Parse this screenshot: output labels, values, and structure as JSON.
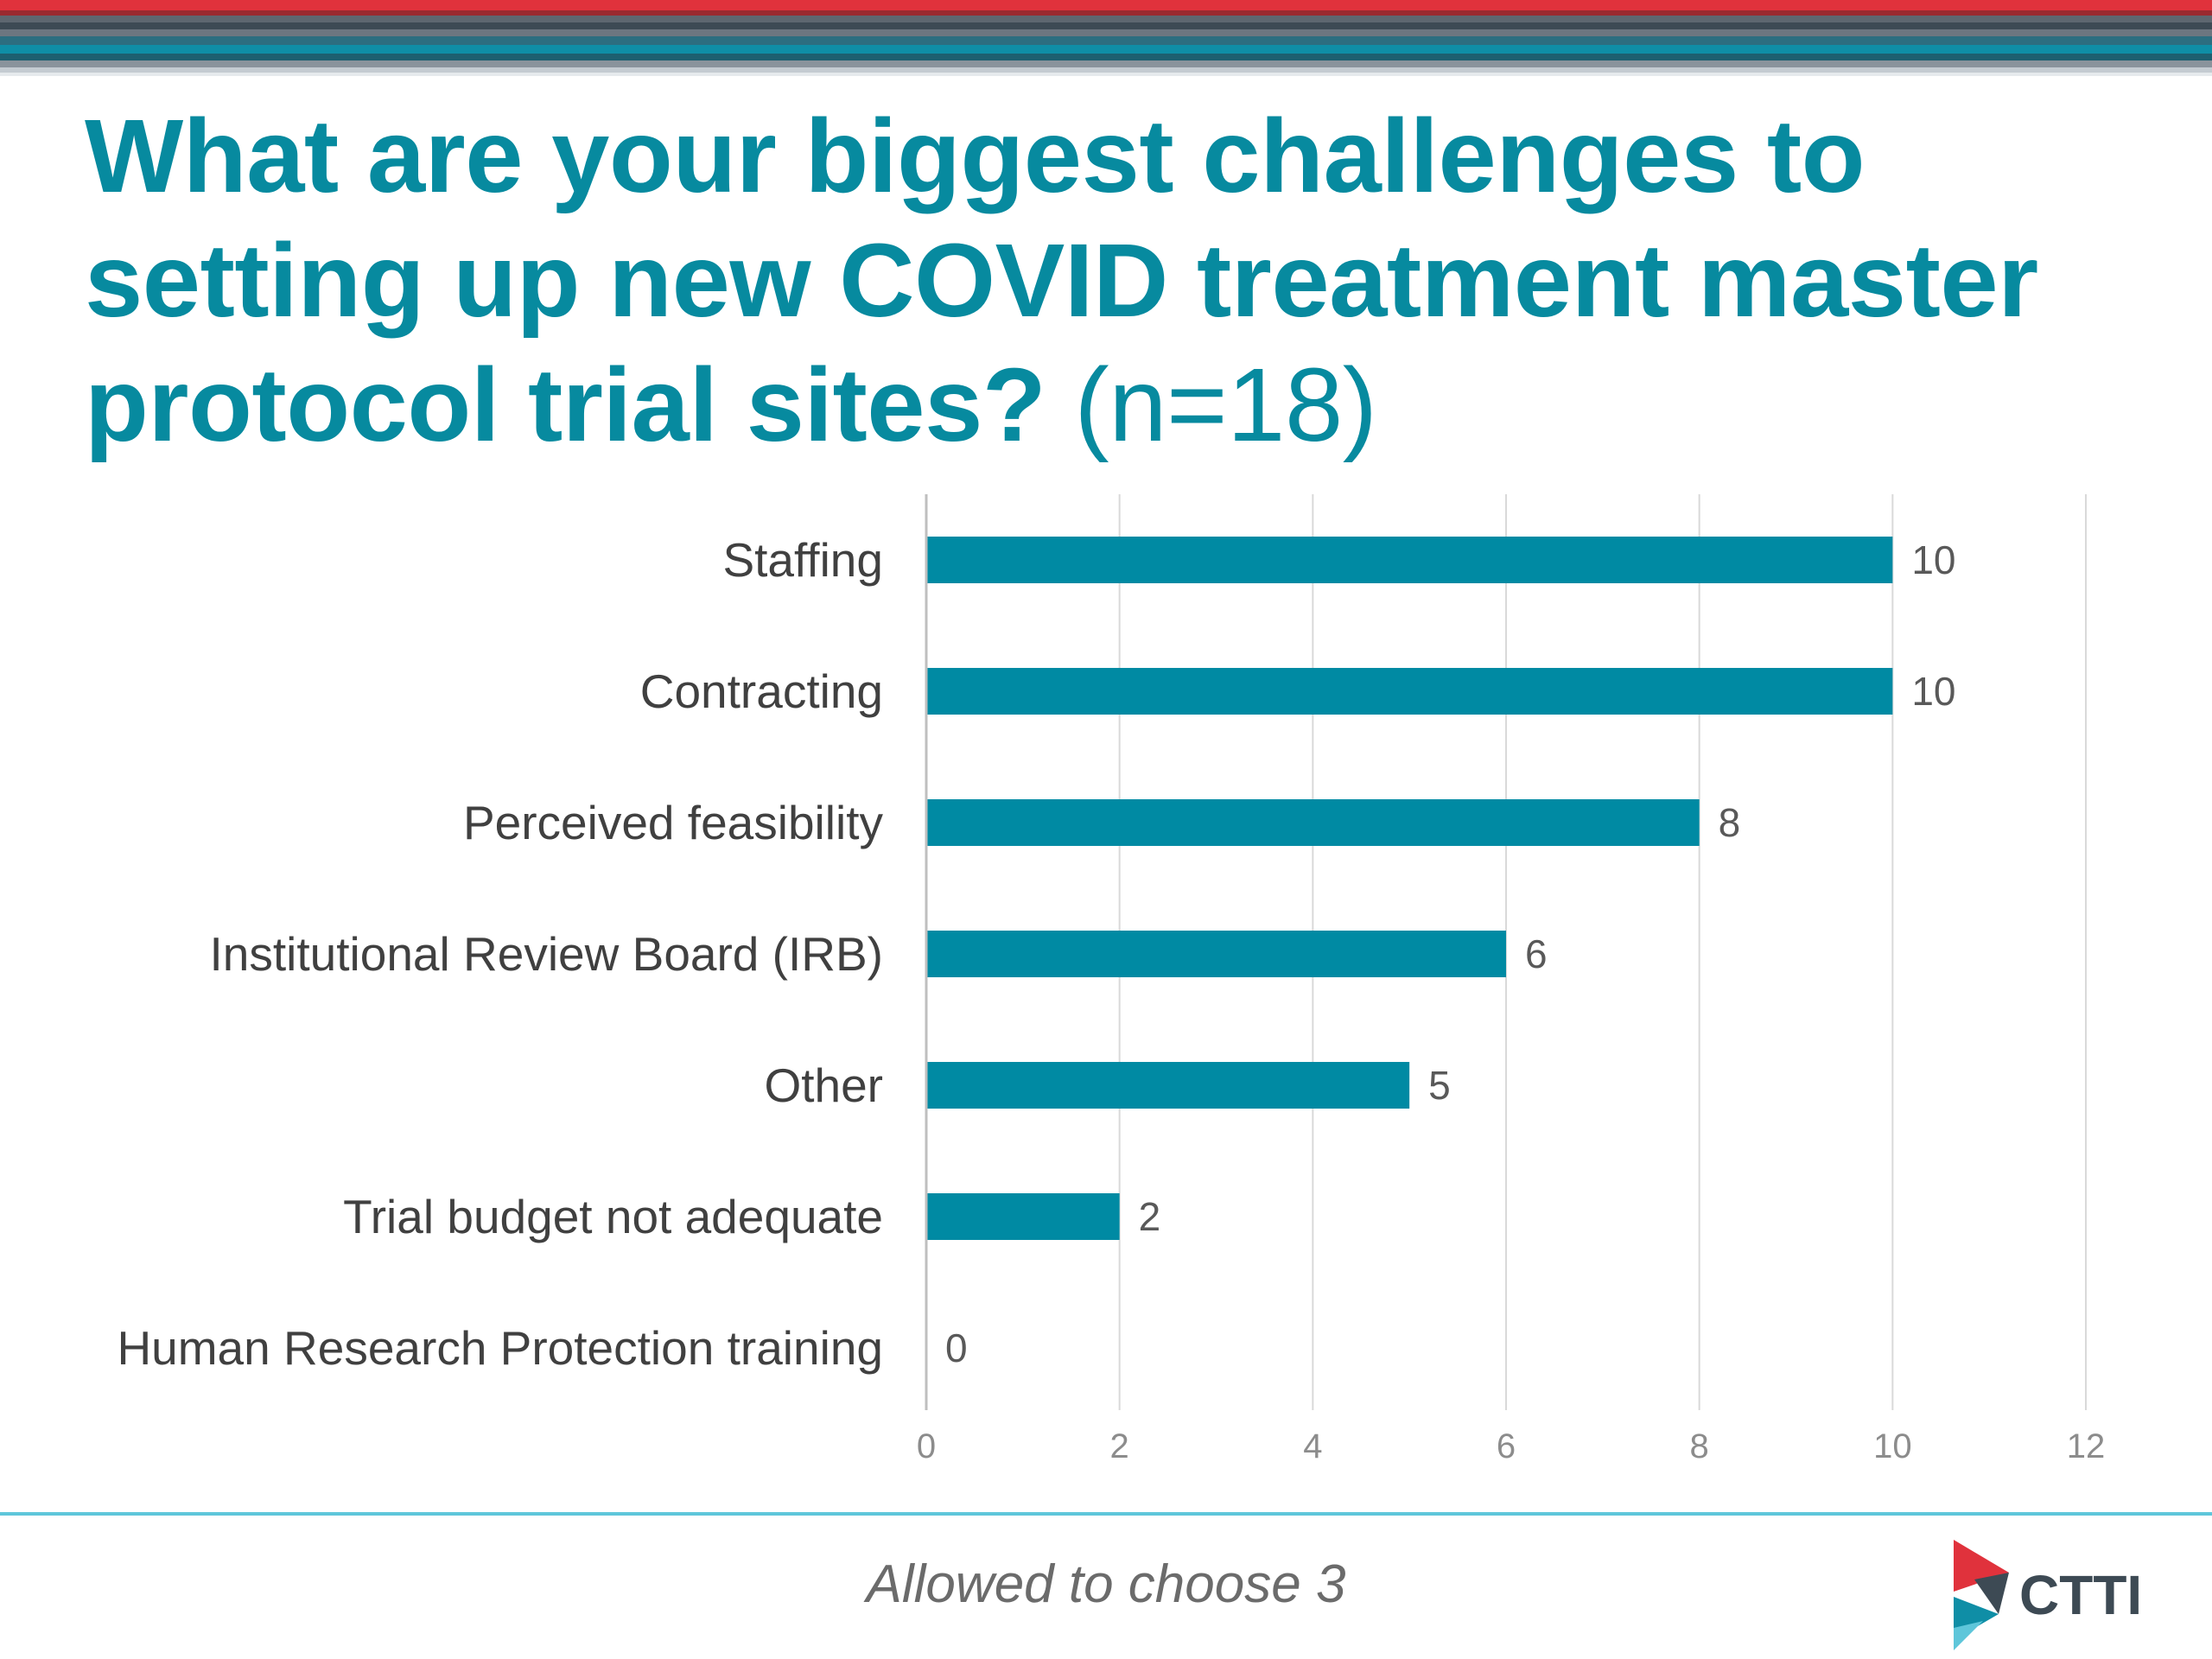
{
  "slide": {
    "title_main": "What are your biggest challenges to setting up new COVID treatment master protocol trial sites?",
    "title_n": "(n=18)",
    "footnote": "Allowed to choose 3",
    "logo_text": "CTTI"
  },
  "colors": {
    "bar": "#008aa3",
    "title": "#078a9f",
    "rule": "#5ec6da",
    "stripe_red": "#e0323c",
    "stripe_dark": "#3d4a54",
    "stripe_teal": "#0f8ea6"
  },
  "chart_data": {
    "type": "bar",
    "orientation": "horizontal",
    "categories": [
      "Staffing",
      "Contracting",
      "Perceived feasibility",
      "Institutional Review Board (IRB)",
      "Other",
      "Trial budget not adequate",
      "Human Research Protection training"
    ],
    "values": [
      10,
      10,
      8,
      6,
      5,
      2,
      0
    ],
    "data_labels": [
      "10",
      "10",
      "8",
      "6",
      "5",
      "2",
      "0"
    ],
    "xlim": [
      0,
      12
    ],
    "xticks": [
      0,
      2,
      4,
      6,
      8,
      10,
      12
    ],
    "grid": "vertical",
    "legend": "none"
  }
}
